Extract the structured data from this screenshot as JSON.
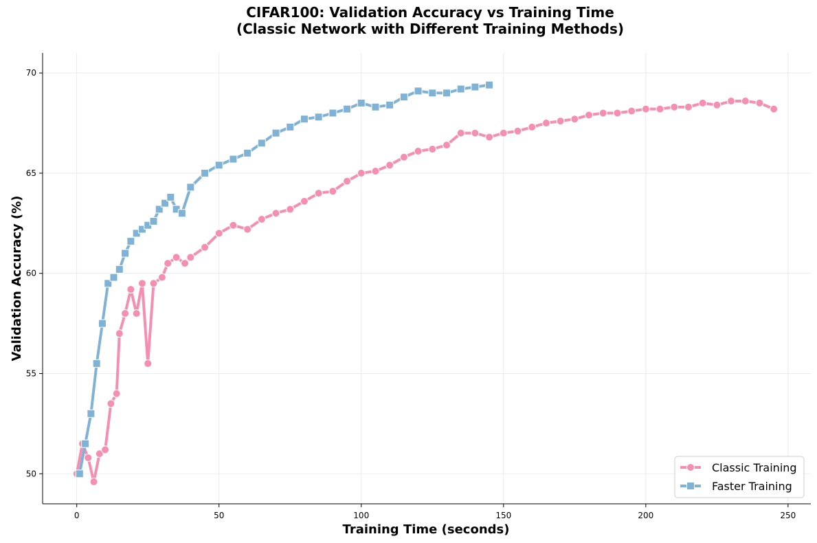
{
  "chart_data": {
    "type": "line",
    "title": "CIFAR100: Validation Accuracy vs Training Time",
    "subtitle": "(Classic Network with Different Training Methods)",
    "xlabel": "Training Time (seconds)",
    "ylabel": "Validation Accuracy (%)",
    "xlim": [
      -12,
      258
    ],
    "ylim": [
      48.5,
      71
    ],
    "xticks": [
      0,
      50,
      100,
      150,
      200,
      250
    ],
    "yticks": [
      50,
      55,
      60,
      65,
      70
    ],
    "xtick_labels": [
      "0",
      "50",
      "100",
      "150",
      "200",
      "250"
    ],
    "ytick_labels": [
      "50",
      "55",
      "60",
      "65",
      "70"
    ],
    "grid": true,
    "legend_position": "bottom-right",
    "series": [
      {
        "name": "Classic Training",
        "color": "#f48fb1",
        "marker": "circle",
        "points": [
          [
            0,
            50.0
          ],
          [
            2,
            51.5
          ],
          [
            4,
            50.8
          ],
          [
            6,
            49.6
          ],
          [
            8,
            51.0
          ],
          [
            10,
            51.2
          ],
          [
            12,
            53.5
          ],
          [
            14,
            54.0
          ],
          [
            15,
            57.0
          ],
          [
            17,
            58.0
          ],
          [
            19,
            59.2
          ],
          [
            21,
            58.0
          ],
          [
            23,
            59.5
          ],
          [
            25,
            55.5
          ],
          [
            27,
            59.5
          ],
          [
            30,
            59.8
          ],
          [
            32,
            60.5
          ],
          [
            35,
            60.8
          ],
          [
            38,
            60.5
          ],
          [
            40,
            60.8
          ],
          [
            45,
            61.3
          ],
          [
            50,
            62.0
          ],
          [
            55,
            62.4
          ],
          [
            60,
            62.2
          ],
          [
            65,
            62.7
          ],
          [
            70,
            63.0
          ],
          [
            75,
            63.2
          ],
          [
            80,
            63.6
          ],
          [
            85,
            64.0
          ],
          [
            90,
            64.1
          ],
          [
            95,
            64.6
          ],
          [
            100,
            65.0
          ],
          [
            105,
            65.1
          ],
          [
            110,
            65.4
          ],
          [
            115,
            65.8
          ],
          [
            120,
            66.1
          ],
          [
            125,
            66.2
          ],
          [
            130,
            66.4
          ],
          [
            135,
            67.0
          ],
          [
            140,
            67.0
          ],
          [
            145,
            66.8
          ],
          [
            150,
            67.0
          ],
          [
            155,
            67.1
          ],
          [
            160,
            67.3
          ],
          [
            165,
            67.5
          ],
          [
            170,
            67.6
          ],
          [
            175,
            67.7
          ],
          [
            180,
            67.9
          ],
          [
            185,
            68.0
          ],
          [
            190,
            68.0
          ],
          [
            195,
            68.1
          ],
          [
            200,
            68.2
          ],
          [
            205,
            68.2
          ],
          [
            210,
            68.3
          ],
          [
            215,
            68.3
          ],
          [
            220,
            68.5
          ],
          [
            225,
            68.4
          ],
          [
            230,
            68.6
          ],
          [
            235,
            68.6
          ],
          [
            240,
            68.5
          ],
          [
            245,
            68.2
          ]
        ]
      },
      {
        "name": "Faster Training",
        "color": "#7fb2d4",
        "marker": "square",
        "points": [
          [
            1,
            50.0
          ],
          [
            3,
            51.5
          ],
          [
            5,
            53.0
          ],
          [
            7,
            55.5
          ],
          [
            9,
            57.5
          ],
          [
            11,
            59.5
          ],
          [
            13,
            59.8
          ],
          [
            15,
            60.2
          ],
          [
            17,
            61.0
          ],
          [
            19,
            61.6
          ],
          [
            21,
            62.0
          ],
          [
            23,
            62.2
          ],
          [
            25,
            62.4
          ],
          [
            27,
            62.6
          ],
          [
            29,
            63.2
          ],
          [
            31,
            63.5
          ],
          [
            33,
            63.8
          ],
          [
            35,
            63.2
          ],
          [
            37,
            63.0
          ],
          [
            40,
            64.3
          ],
          [
            45,
            65.0
          ],
          [
            50,
            65.4
          ],
          [
            55,
            65.7
          ],
          [
            60,
            66.0
          ],
          [
            65,
            66.5
          ],
          [
            70,
            67.0
          ],
          [
            75,
            67.3
          ],
          [
            80,
            67.7
          ],
          [
            85,
            67.8
          ],
          [
            90,
            68.0
          ],
          [
            95,
            68.2
          ],
          [
            100,
            68.5
          ],
          [
            105,
            68.3
          ],
          [
            110,
            68.4
          ],
          [
            115,
            68.8
          ],
          [
            120,
            69.1
          ],
          [
            125,
            69.0
          ],
          [
            130,
            69.0
          ],
          [
            135,
            69.2
          ],
          [
            140,
            69.3
          ],
          [
            145,
            69.4
          ]
        ]
      }
    ]
  }
}
